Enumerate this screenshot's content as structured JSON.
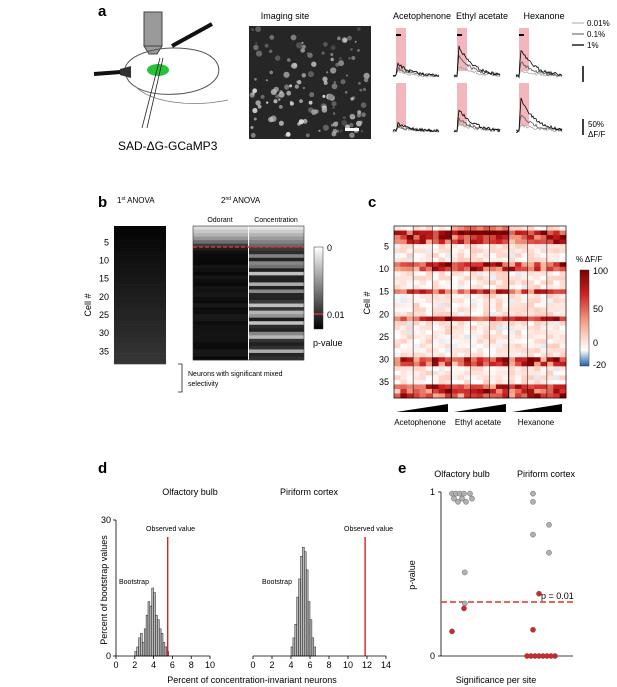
{
  "panels": [
    "a",
    "b",
    "c",
    "d",
    "e"
  ],
  "panel_a": {
    "virus_label": "SAD-ΔG-GCaMP3",
    "imaging_title": "Imaging site",
    "odor_titles": [
      "Acetophenone",
      "Ethyl acetate",
      "Hexanone"
    ],
    "legend": [
      "0.01%",
      "0.1%",
      "1%"
    ],
    "scale_label_1": "50%",
    "scale_label_2": "ΔF/F",
    "shade_color": "#f4b6bd"
  },
  "panel_b": {
    "anova1_prefix": "1",
    "anova1_sup": "st",
    "anova1_suffix": " ANOVA",
    "anova2_prefix": "2",
    "anova2_sup": "nd",
    "anova2_suffix": " ANOVA",
    "col_odorant": "Odorant",
    "col_concentration": "Concentration",
    "ylabel": "Cell #",
    "yticks": [
      "5",
      "10",
      "15",
      "20",
      "25",
      "30",
      "35"
    ],
    "cbar_ticks": [
      "0",
      "0.01"
    ],
    "cbar_label": "p-value",
    "bracket_label_1": "Neurons with significant mixed",
    "bracket_label_2": "selectivity",
    "threshold_color": "#e03030"
  },
  "panel_c": {
    "ylabel": "Cell #",
    "yticks": [
      "5",
      "10",
      "15",
      "20",
      "25",
      "30",
      "35"
    ],
    "odor_labels": [
      "Acetophenone",
      "Ethyl acetate",
      "Hexanone"
    ],
    "cbar_title": "% ΔF/F",
    "cbar_ticks": [
      "100",
      "50",
      "0",
      "-20"
    ],
    "colors": {
      "high": "#8b0000",
      "mid": "#ffffff",
      "low": "#1f5fa8"
    }
  },
  "chart_data": [
    {
      "type": "bar",
      "panel": "d",
      "title": "Olfactory bulb",
      "ylabel": "Percent of bootstrap values",
      "xlabel": "",
      "x_ticks": [
        "0",
        "2",
        "4",
        "6",
        "8",
        "10"
      ],
      "y_ticks": [
        "0",
        "30"
      ],
      "xlim": [
        0,
        10
      ],
      "ylim": [
        0,
        30
      ],
      "bin_width": 0.2,
      "bins": [
        2.0,
        2.2,
        2.4,
        2.6,
        2.8,
        3.0,
        3.2,
        3.4,
        3.6,
        3.8,
        4.0,
        4.2,
        4.4,
        4.6,
        4.8,
        5.0,
        5.2,
        5.4
      ],
      "values": [
        1,
        2,
        4,
        5,
        3,
        6,
        9,
        12,
        11,
        15,
        14,
        9,
        8,
        6,
        5,
        3,
        2,
        1
      ],
      "observed_value": 5.5,
      "observed_label": "Observed value",
      "bootstrap_label": "Bootstrap",
      "observed_color": "#e02020"
    },
    {
      "type": "bar",
      "panel": "d",
      "title": "Piriform cortex",
      "xlabel": "",
      "x_ticks": [
        "0",
        "2",
        "4",
        "6",
        "8",
        "10",
        "12",
        "14"
      ],
      "xlim": [
        0,
        14
      ],
      "ylim": [
        0,
        30
      ],
      "bin_width": 0.2,
      "bins": [
        4.0,
        4.2,
        4.4,
        4.6,
        4.8,
        5.0,
        5.2,
        5.4,
        5.6,
        5.8,
        6.0,
        6.2,
        6.4
      ],
      "values": [
        2,
        4,
        7,
        13,
        17,
        22,
        24,
        23,
        19,
        12,
        8,
        4,
        2
      ],
      "observed_value": 11.8,
      "observed_label": "Observed value",
      "bootstrap_label": "Bootstrap",
      "observed_color": "#e02020"
    },
    {
      "type": "scatter",
      "panel": "e",
      "ylabel": "p-value",
      "xlabel": "Significance per site",
      "y_ticks": [
        "0",
        "1"
      ],
      "ylim": [
        0,
        1
      ],
      "groups": [
        "Olfactory bulb",
        "Piriform cortex"
      ],
      "threshold_label": "p = 0.01",
      "threshold_color": "#e03030",
      "sig_color": "#cc2a2a",
      "nonsig_color": "#b0b0b0",
      "points": [
        {
          "group": 0,
          "x": -0.3,
          "y": 0.99,
          "sig": false
        },
        {
          "group": 0,
          "x": -0.2,
          "y": 0.99,
          "sig": false
        },
        {
          "group": 0,
          "x": -0.1,
          "y": 0.99,
          "sig": false
        },
        {
          "group": 0,
          "x": 0.0,
          "y": 0.99,
          "sig": false
        },
        {
          "group": 0,
          "x": 0.15,
          "y": 0.99,
          "sig": false
        },
        {
          "group": 0,
          "x": -0.25,
          "y": 0.96,
          "sig": false
        },
        {
          "group": 0,
          "x": -0.05,
          "y": 0.96,
          "sig": false
        },
        {
          "group": 0,
          "x": 0.2,
          "y": 0.96,
          "sig": false
        },
        {
          "group": 0,
          "x": -0.15,
          "y": 0.94,
          "sig": false
        },
        {
          "group": 0,
          "x": 0.05,
          "y": 0.94,
          "sig": false
        },
        {
          "group": 0,
          "x": 0.02,
          "y": 0.51,
          "sig": false
        },
        {
          "group": 0,
          "x": 0.02,
          "y": 0.32,
          "sig": false
        },
        {
          "group": 0,
          "x": 0.0,
          "y": 0.29,
          "sig": true
        },
        {
          "group": 0,
          "x": -0.3,
          "y": 0.15,
          "sig": true
        },
        {
          "group": 1,
          "x": -0.2,
          "y": 0.99,
          "sig": false
        },
        {
          "group": 1,
          "x": -0.2,
          "y": 0.94,
          "sig": false
        },
        {
          "group": 1,
          "x": 0.2,
          "y": 0.8,
          "sig": false
        },
        {
          "group": 1,
          "x": -0.2,
          "y": 0.74,
          "sig": false
        },
        {
          "group": 1,
          "x": 0.2,
          "y": 0.63,
          "sig": false
        },
        {
          "group": 1,
          "x": -0.05,
          "y": 0.38,
          "sig": true
        },
        {
          "group": 1,
          "x": -0.2,
          "y": 0.16,
          "sig": true
        },
        {
          "group": 1,
          "x": -0.35,
          "y": 0.0,
          "sig": true
        },
        {
          "group": 1,
          "x": -0.25,
          "y": 0.0,
          "sig": true
        },
        {
          "group": 1,
          "x": -0.15,
          "y": 0.0,
          "sig": true
        },
        {
          "group": 1,
          "x": -0.05,
          "y": 0.0,
          "sig": true
        },
        {
          "group": 1,
          "x": 0.05,
          "y": 0.0,
          "sig": true
        },
        {
          "group": 1,
          "x": 0.15,
          "y": 0.0,
          "sig": true
        },
        {
          "group": 1,
          "x": 0.25,
          "y": 0.0,
          "sig": true
        },
        {
          "group": 1,
          "x": 0.35,
          "y": 0.0,
          "sig": true
        }
      ]
    }
  ],
  "panel_d": {
    "xlabel": "Percent of concentration-invariant neurons"
  }
}
